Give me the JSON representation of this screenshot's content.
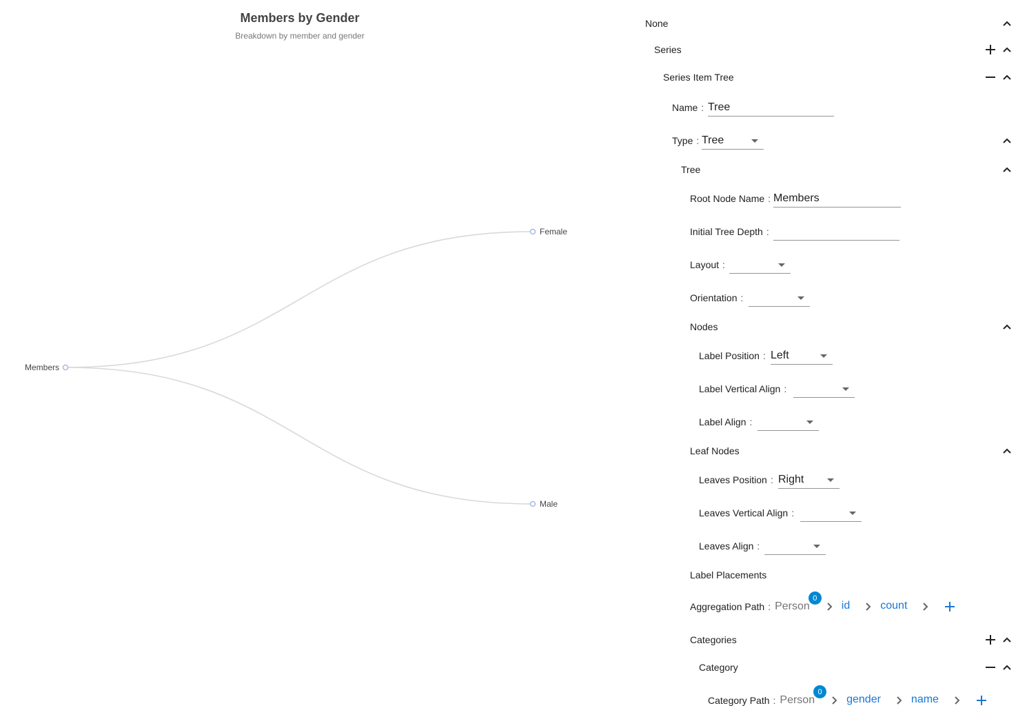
{
  "chart": {
    "title": "Members by Gender",
    "subtitle": "Breakdown by member and gender",
    "chart_data": {
      "type": "tree",
      "root": "Members",
      "children": [
        "Female",
        "Male"
      ],
      "orientation": "left-to-right",
      "line_color": "#d9d9d9",
      "node_color": "#a8b8e0"
    }
  },
  "panel": {
    "rows": [
      {
        "label": "None",
        "controls": [
          "chevron-up"
        ]
      },
      {
        "label": "Series",
        "controls": [
          "plus",
          "chevron-up"
        ]
      },
      {
        "label": "Series Item Tree",
        "controls": [
          "minus",
          "chevron-up"
        ]
      },
      {
        "label": "Name",
        "input": "Tree"
      },
      {
        "label": "Type",
        "select": "Tree",
        "controls": [
          "chevron-up"
        ]
      },
      {
        "label": "Tree",
        "controls": [
          "chevron-up"
        ]
      },
      {
        "label": "Root Node Name",
        "input": "Members"
      },
      {
        "label": "Initial Tree Depth",
        "input": ""
      },
      {
        "label": "Layout",
        "select": ""
      },
      {
        "label": "Orientation",
        "select": ""
      },
      {
        "label": "Nodes",
        "controls": [
          "chevron-up"
        ]
      },
      {
        "label": "Label Position",
        "select": "Left"
      },
      {
        "label": "Label Vertical Align",
        "select": ""
      },
      {
        "label": "Label Align",
        "select": ""
      },
      {
        "label": "Leaf Nodes",
        "controls": [
          "chevron-up"
        ]
      },
      {
        "label": "Leaves Position",
        "select": "Right"
      },
      {
        "label": "Leaves Vertical Align",
        "select": ""
      },
      {
        "label": "Leaves Align",
        "select": ""
      },
      {
        "label": "Label Placements"
      },
      {
        "label": "Aggregation Path",
        "path": {
          "root": "Person",
          "badge": "0",
          "steps": [
            "id",
            "count"
          ]
        }
      },
      {
        "label": "Categories",
        "controls": [
          "plus",
          "chevron-up"
        ]
      },
      {
        "label": "Category",
        "controls": [
          "minus",
          "chevron-up"
        ]
      },
      {
        "label": "Category Path",
        "path": {
          "root": "Person",
          "badge": "0",
          "steps": [
            "gender",
            "name"
          ]
        }
      }
    ]
  },
  "colors": {
    "link": "#1976d2",
    "badge": "#0288d1"
  }
}
